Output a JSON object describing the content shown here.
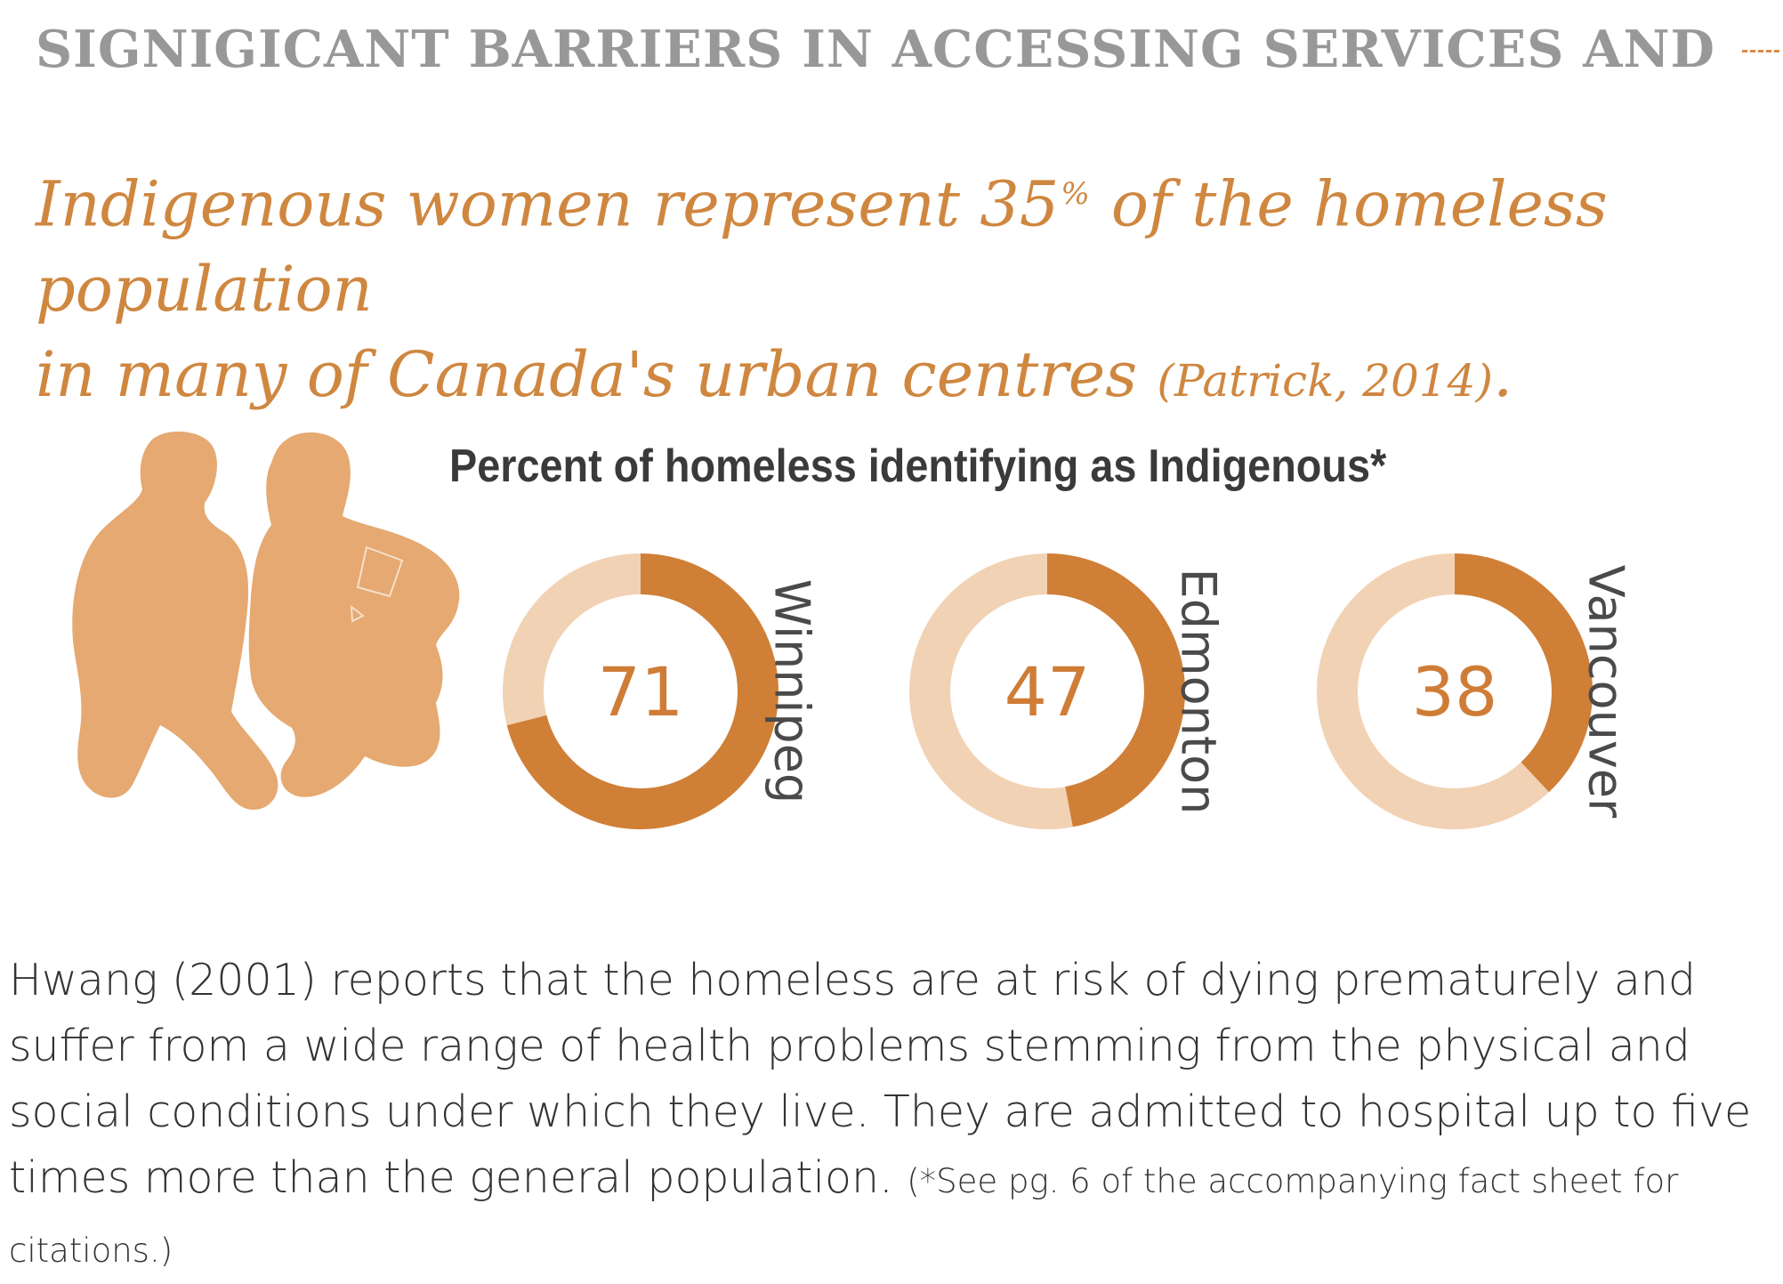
{
  "header": {
    "title": "SIGNIGICANT BARRIERS IN ACCESSING SERVICES AND"
  },
  "headline": {
    "part1": "Indigenous women represent 35",
    "percent_sign": "%",
    "part2": " of  the homeless population",
    "line2": "in many of  Canada's urban centres ",
    "citation": "(Patrick, 2014)",
    "end": "."
  },
  "chart_data": {
    "type": "pie",
    "title": "Percent of homeless identifying as Indigenous*",
    "categories": [
      "Winnipeg",
      "Edmonton",
      "Vancouver"
    ],
    "values": [
      71,
      47,
      38
    ],
    "max": 100,
    "colors": {
      "filled": "#d07f37",
      "remainder": "#f2d2b4"
    }
  },
  "body": {
    "text": "Hwang (2001) reports that the homeless are at risk of dying prematurely and suffer from a wide range of health problems stemming from the physical and social conditions under which they live. They are admitted to hospital up to five times more than the general population. ",
    "note": "(*See pg. 6 of the accompanying fact sheet for citations.)"
  },
  "colors": {
    "accent": "#cf8740",
    "header_gray": "#98989a",
    "silhouette": "#e5a971"
  },
  "icons": {
    "figure": "sitting-people-silhouette-icon"
  }
}
